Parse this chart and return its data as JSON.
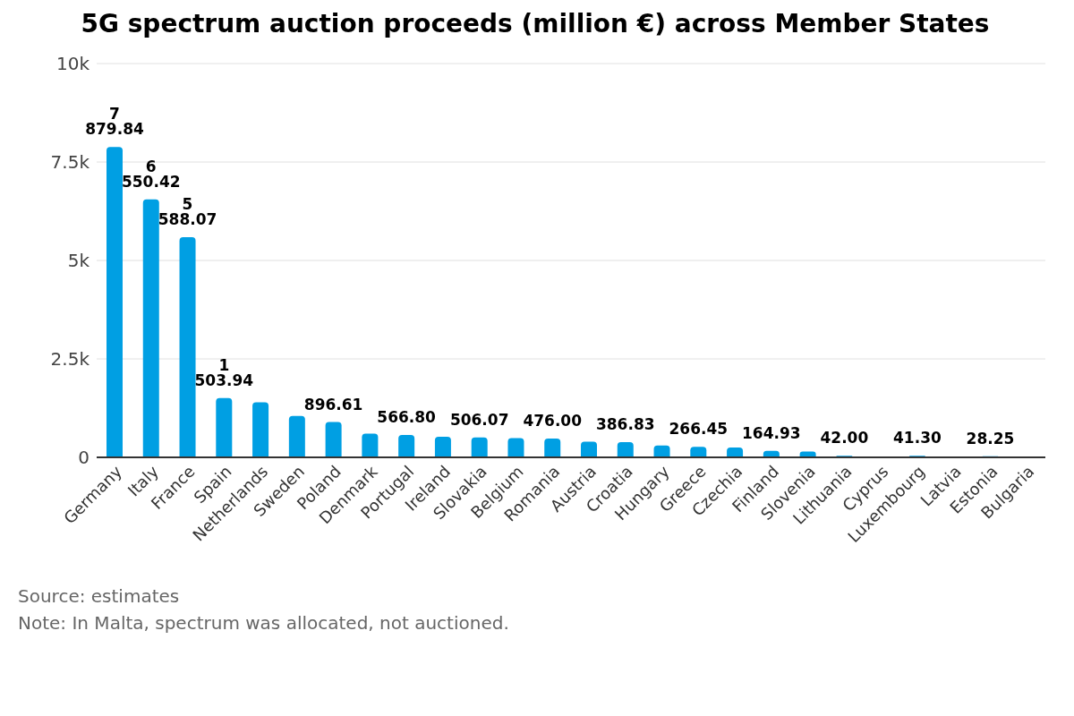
{
  "chart_data": {
    "type": "bar",
    "title": "5G spectrum auction proceeds (million €) across Member States",
    "categories": [
      "Germany",
      "Italy",
      "France",
      "Spain",
      "Netherlands",
      "Sweden",
      "Poland",
      "Denmark",
      "Portugal",
      "Ireland",
      "Slovakia",
      "Belgium",
      "Romania",
      "Austria",
      "Croatia",
      "Hungary",
      "Greece",
      "Czechia",
      "Finland",
      "Slovenia",
      "Lithuania",
      "Cyprus",
      "Luxembourg",
      "Latvia",
      "Estonia",
      "Bulgaria"
    ],
    "values": [
      7879.84,
      6550.42,
      5588.07,
      1503.94,
      1400,
      1050,
      896.61,
      600,
      566.8,
      520,
      506.07,
      490,
      476,
      400,
      386.83,
      300,
      266.45,
      250,
      164.93,
      150,
      42,
      null,
      41.3,
      null,
      28.25,
      null
    ],
    "value_labels": [
      "7 879.84",
      "6 550.42",
      "5 588.07",
      "1 503.94",
      null,
      null,
      "896.61",
      null,
      "566.80",
      null,
      "506.07",
      null,
      "476.00",
      null,
      "386.83",
      null,
      "266.45",
      null,
      "164.93",
      null,
      "42.00",
      null,
      "41.30",
      null,
      "28.25",
      null
    ],
    "color": "#009fe3",
    "ylim": [
      0,
      10000
    ],
    "yticks": [
      0,
      {
        "value": 2500,
        "label": "2.5k"
      },
      {
        "value": 5000,
        "label": "5k"
      },
      {
        "value": 7500,
        "label": "7.5k"
      },
      {
        "value": 10000,
        "label": "10k"
      }
    ],
    "grid": "y",
    "annotations": [
      "Source: estimates",
      "Note: In Malta, spectrum was allocated, not auctioned."
    ]
  }
}
